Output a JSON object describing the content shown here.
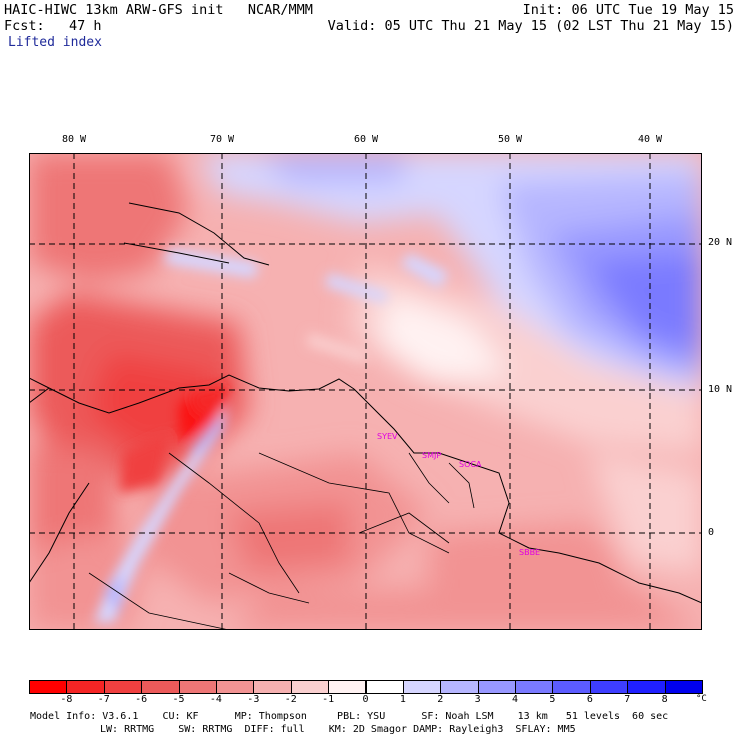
{
  "header": {
    "title": "HAIC-HIWC 13km ARW-GFS init   NCAR/MMM",
    "fcst": "Fcst:   47 h",
    "field": "Lifted index",
    "init": "Init: 06 UTC Tue 19 May 15",
    "valid": "Valid: 05 UTC Thu 21 May 15 (02 LST Thu 21 May 15)"
  },
  "map": {
    "lon_labels": [
      "80 W",
      "70 W",
      "60 W",
      "50 W",
      "40 W"
    ],
    "lat_labels": [
      "20 N",
      "10 N",
      "0"
    ],
    "stations": [
      "SYEV",
      "SMJP",
      "SOCA",
      "SBBE"
    ]
  },
  "colorbar": {
    "colors": [
      "#ff0000",
      "#f52525",
      "#f04040",
      "#ec5a5a",
      "#ee7676",
      "#f29393",
      "#f6b1b1",
      "#fad0d0",
      "#fff2f2",
      "#ffffff",
      "#d6d6ff",
      "#b6b6ff",
      "#9898ff",
      "#7a7aff",
      "#5c5cff",
      "#3e3eff",
      "#2020ff",
      "#0000ee"
    ],
    "ticks": [
      "-8",
      "-7",
      "-6",
      "-5",
      "-4",
      "-3",
      "-2",
      "-1",
      "0",
      "1",
      "2",
      "3",
      "4",
      "5",
      "6",
      "7",
      "8"
    ],
    "unit": "°C"
  },
  "footer": {
    "line1": "Model Info: V3.6.1    CU: KF      MP: Thompson     PBL: YSU      SF: Noah LSM    13 km   51 levels  60 sec",
    "line2": "LW: RRTMG    SW: RRTMG  DIFF: full    KM: 2D Smagor DAMP: Rayleigh3  SFLAY: MM5"
  }
}
